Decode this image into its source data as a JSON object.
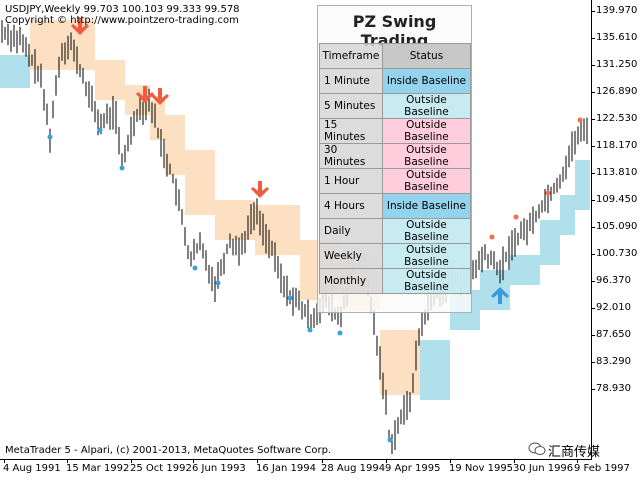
{
  "symbol_info": "USDJPY,Weekly  99.703 100.103 99.333 99.578",
  "copyright": "Copyright © http://www.pointzero-trading.com",
  "footer": "MetaTrader 5 - Alpari, (c) 2001-2013, MetaQuotes Software Corp.",
  "watermark": "汇商传媒",
  "price_axis": [
    "139.970",
    "135.610",
    "131.250",
    "126.890",
    "122.530",
    "118.170",
    "113.810",
    "109.450",
    "105.090",
    "100.730",
    "96.370",
    "92.010",
    "87.650",
    "83.290",
    "78.930"
  ],
  "time_axis": [
    "4 Aug 1991",
    "15 Mar 1992",
    "25 Oct 1992",
    "6 Jun 1993",
    "16 Jan 1994",
    "28 Aug 1994",
    "9 Apr 1995",
    "19 Nov 1995",
    "30 Jun 1996",
    "9 Feb 1997"
  ],
  "panel": {
    "title": "PZ Swing Trading",
    "header_timeframe": "Timeframe",
    "header_status": "Status",
    "rows": [
      {
        "timeframe": "1 Minute",
        "status": "Inside Baseline",
        "style": "inside"
      },
      {
        "timeframe": "5 Minutes",
        "status": "Outside Baseline",
        "style": "outside-blue"
      },
      {
        "timeframe": "15 Minutes",
        "status": "Outside Baseline",
        "style": "outside-pink"
      },
      {
        "timeframe": "30 Minutes",
        "status": "Outside Baseline",
        "style": "outside-pink"
      },
      {
        "timeframe": "1 Hour",
        "status": "Outside Baseline",
        "style": "outside-pink"
      },
      {
        "timeframe": "4 Hours",
        "status": "Inside Baseline",
        "style": "inside"
      },
      {
        "timeframe": "Daily",
        "status": "Outside Baseline",
        "style": "outside-blue"
      },
      {
        "timeframe": "Weekly",
        "status": "Outside Baseline",
        "style": "outside-blue"
      },
      {
        "timeframe": "Monthly",
        "status": "Outside Baseline",
        "style": "outside-blue"
      }
    ]
  },
  "chart": {
    "bar_color": "#000000",
    "bearish_band_color": "#fde0c2",
    "bullish_band_color": "#b0e0ec",
    "down_arrow_color": "#f05a40",
    "up_arrow_color": "#3a9ad9",
    "swing_high_dot_color": "#f07050",
    "swing_low_dot_color": "#3aa0d8"
  }
}
